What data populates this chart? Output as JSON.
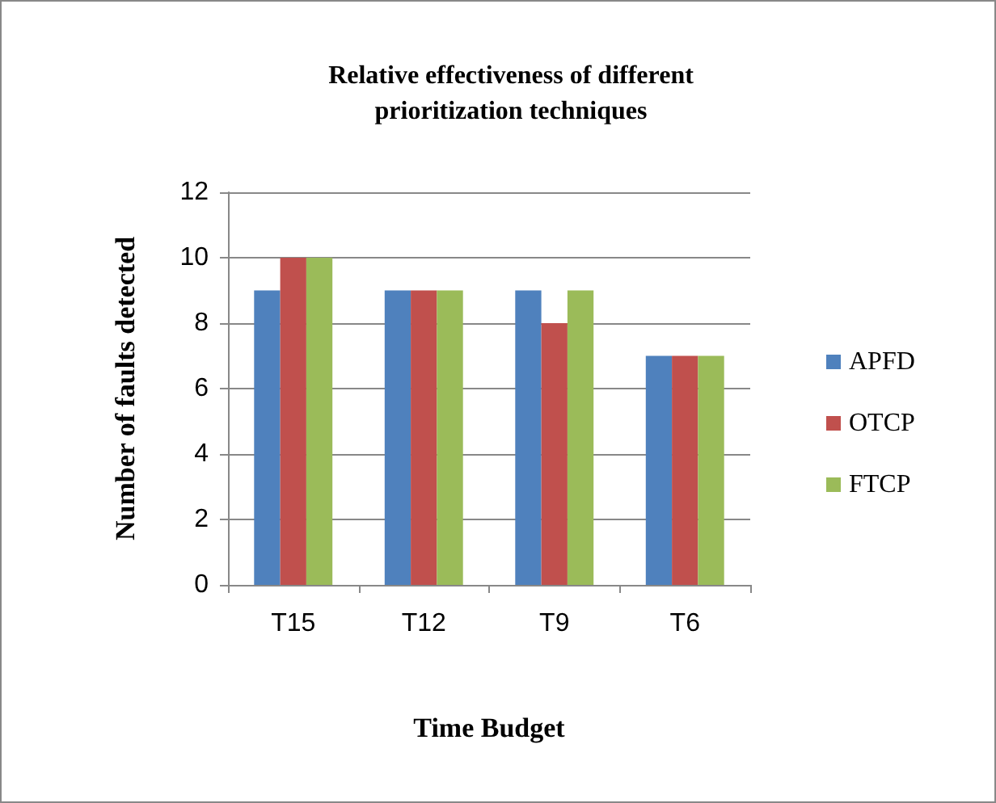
{
  "chart_data": {
    "type": "bar",
    "title": "Relative effectiveness of different\nprioritization techniques",
    "xlabel": "Time Budget",
    "ylabel": "Number of faults detected",
    "categories": [
      "T15",
      "T12",
      "T9",
      "T6"
    ],
    "series": [
      {
        "name": "APFD",
        "color": "#4f81bd",
        "values": [
          9,
          9,
          9,
          7
        ]
      },
      {
        "name": "OTCP",
        "color": "#c0504d",
        "values": [
          10,
          9,
          8,
          7
        ]
      },
      {
        "name": "FTCP",
        "color": "#9bbb59",
        "values": [
          10,
          9,
          9,
          7
        ]
      }
    ],
    "ylim": [
      0,
      12
    ],
    "yticks": [
      0,
      2,
      4,
      6,
      8,
      10,
      12
    ],
    "grid": "y",
    "legend": "right"
  }
}
